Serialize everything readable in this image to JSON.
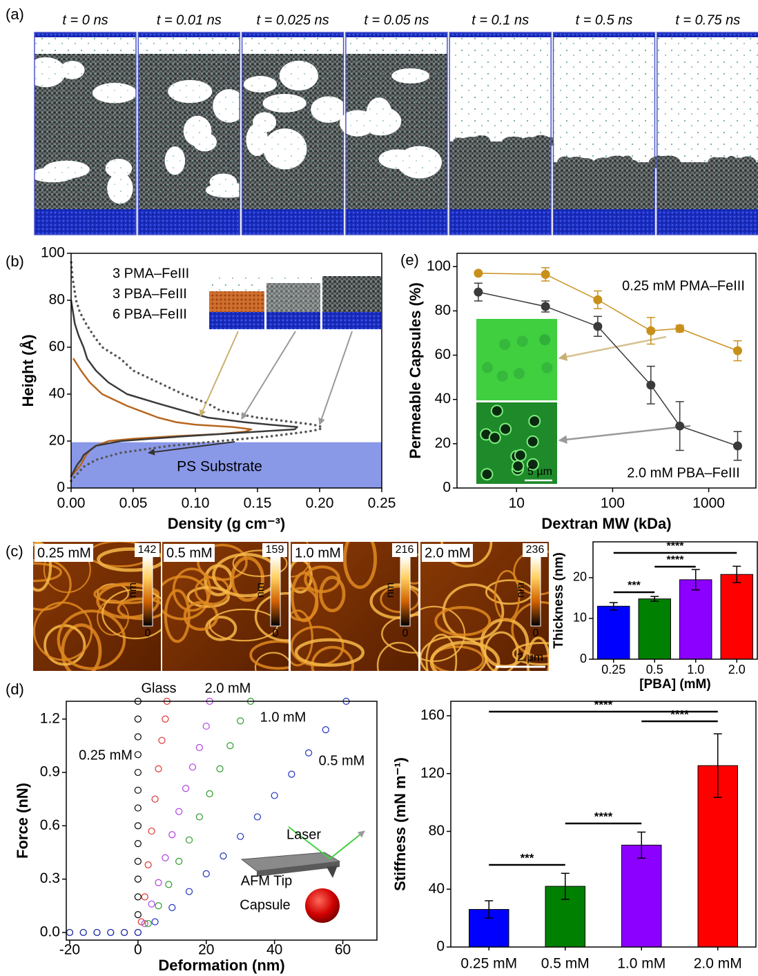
{
  "panel_labels": [
    "(a)",
    "(b)",
    "(c)",
    "(d)",
    "(e)"
  ],
  "panel_a": {
    "times": [
      "t = 0 ns",
      "t = 0.01 ns",
      "t = 0.025 ns",
      "t = 0.05 ns",
      "t = 0.1 ns",
      "t = 0.5 ns",
      "t = 0.75 ns"
    ]
  },
  "panel_c_images": {
    "unit": "nm",
    "scale_bar": "2 µm",
    "images": [
      {
        "label": "0.25 mM",
        "color": "#1a1acc",
        "max": 142,
        "min": 0
      },
      {
        "label": "0.5 mM",
        "color": "#1a8a1a",
        "max": 159,
        "min": 0
      },
      {
        "label": "1.0 mM",
        "color": "#9a1ab0",
        "max": 216,
        "min": 0
      },
      {
        "label": "2.0 mM",
        "color": "#dd1a1a",
        "max": 236,
        "min": 0
      }
    ]
  },
  "chart_data": [
    {
      "type": "line",
      "xlabel": "Density (g cm⁻³)",
      "ylabel": "Height (Å)",
      "xlim": [
        0,
        0.25
      ],
      "ylim": [
        0,
        100
      ],
      "xticks": [
        {
          "value": 0,
          "label": "0.00"
        },
        0.05,
        {
          "value": 0.1,
          "label": "0.10"
        },
        0.15,
        {
          "value": 0.2,
          "label": "0.20"
        },
        0.25
      ],
      "yticks": [
        0,
        20,
        40,
        60,
        80,
        100
      ],
      "region": {
        "label": "PS Substrate",
        "y": [
          0,
          19.5
        ],
        "color": "#7d8de6"
      },
      "series": [
        {
          "name": "3 PMA–FeIII",
          "color": "#b8661e",
          "style": "solid",
          "x": [
            0,
            0.005,
            0.008,
            0.01,
            0.012,
            0.015,
            0.02,
            0.03,
            0.05,
            0.08,
            0.12,
            0.14,
            0.145,
            0.13,
            0.1,
            0.085,
            0.07,
            0.06,
            0.045,
            0.025,
            0.015,
            0.008,
            0.002
          ],
          "y": [
            5,
            8,
            10,
            12,
            14,
            16,
            18,
            20,
            21,
            22,
            23,
            24,
            25,
            26,
            27,
            28,
            30,
            32,
            35,
            40,
            45,
            50,
            55
          ]
        },
        {
          "name": "3 PBA–FeIII",
          "color": "#3a3a3a",
          "style": "solid",
          "x": [
            0,
            0.003,
            0.005,
            0.008,
            0.01,
            0.015,
            0.02,
            0.04,
            0.09,
            0.15,
            0.18,
            0.182,
            0.16,
            0.14,
            0.11,
            0.09,
            0.07,
            0.045,
            0.03,
            0.02,
            0.013,
            0.01,
            0.006,
            0.003,
            0
          ],
          "y": [
            5,
            8,
            10,
            12,
            14,
            16,
            18,
            20,
            22,
            24,
            25,
            26,
            27,
            28,
            30,
            33,
            36,
            40,
            45,
            50,
            55,
            60,
            65,
            70,
            80
          ]
        },
        {
          "name": "6 PBA–FeIII",
          "color": "#555555",
          "style": "dotted",
          "x": [
            0,
            0.005,
            0.01,
            0.02,
            0.04,
            0.08,
            0.12,
            0.16,
            0.19,
            0.2,
            0.202,
            0.195,
            0.18,
            0.15,
            0.12,
            0.11,
            0.09,
            0.07,
            0.05,
            0.04,
            0.025,
            0.018,
            0.012,
            0.007,
            0.004,
            0.001,
            0
          ],
          "y": [
            3,
            6,
            9,
            12,
            15,
            18,
            20,
            22,
            24,
            25,
            26,
            27,
            28,
            30,
            33,
            36,
            40,
            45,
            50,
            55,
            60,
            65,
            70,
            75,
            80,
            90,
            97
          ]
        }
      ]
    },
    {
      "type": "scatter",
      "x_scale": "log",
      "xlabel": "Dextran MW (kDa)",
      "ylabel": "Permeable Capsules (%)",
      "xlim": [
        2.4,
        3100
      ],
      "ylim": [
        0,
        106
      ],
      "xticks": [
        10,
        100,
        1000
      ],
      "yticks": [
        0,
        20,
        40,
        60,
        80,
        100
      ],
      "x": [
        4,
        20,
        70,
        250,
        500,
        2000
      ],
      "series": [
        {
          "name": "0.25 mM PMA–FeIII",
          "color": "#c8901a",
          "values": [
            97,
            96.5,
            85,
            71,
            72,
            62
          ],
          "errors": [
            0.5,
            3,
            4,
            6,
            1.5,
            4.5
          ]
        },
        {
          "name": "2.0 mM PBA–FeIII",
          "color": "#3a3a3a",
          "values": [
            88.5,
            82,
            73,
            46.5,
            28,
            19
          ],
          "errors": [
            4,
            2.5,
            4.5,
            8.5,
            11,
            6.5
          ]
        }
      ],
      "inset_scale": "5 µm"
    },
    {
      "type": "bar",
      "xlabel": "[PBA] (mM)",
      "ylabel": "Thickness (nm)",
      "categories": [
        "0.25",
        "0.5",
        "1.0",
        "2.0"
      ],
      "values": [
        13,
        14.8,
        19.5,
        20.8
      ],
      "errors": [
        0.9,
        0.6,
        2.5,
        2.0
      ],
      "colors": [
        "#0000ff",
        "#008000",
        "#8b00ff",
        "#ff0000"
      ],
      "ylim": [
        0,
        28.8
      ],
      "yticks": [
        0,
        10,
        20
      ],
      "significance": [
        {
          "label": "***",
          "from": "0.25",
          "to": "0.5"
        },
        {
          "label": "****",
          "from": "0.5",
          "to": "1.0"
        },
        {
          "label": "****",
          "from": "0.25",
          "to": "2.0"
        }
      ]
    },
    {
      "type": "scatter",
      "marker": "open-circle",
      "xlabel": "Deformation (nm)",
      "ylabel": "Force (nN)",
      "xlim": [
        -21,
        70
      ],
      "ylim": [
        -0.043,
        1.3
      ],
      "xticks": [
        -20,
        0,
        20,
        40,
        60
      ],
      "yticks": [
        {
          "value": 0,
          "label": "0.0"
        },
        0.3,
        0.6,
        0.9,
        1.2
      ],
      "series": [
        {
          "name": "Glass",
          "color": "#000000",
          "x": [
            0,
            0,
            0,
            0,
            0,
            0,
            0,
            0,
            0,
            0,
            0,
            0,
            0,
            0
          ],
          "y": [
            0,
            0.1,
            0.2,
            0.3,
            0.4,
            0.5,
            0.6,
            0.7,
            0.8,
            0.9,
            1.0,
            1.1,
            1.2,
            1.3
          ]
        },
        {
          "name": "2.0 mM",
          "color": "#e03030",
          "x": [
            -20,
            -16,
            -12,
            -8,
            -4,
            0,
            1,
            2,
            3,
            4,
            5,
            6,
            7,
            8,
            8.5
          ],
          "y": [
            0,
            0,
            0,
            0,
            0,
            0,
            0.06,
            0.2,
            0.38,
            0.57,
            0.75,
            0.92,
            1.08,
            1.2,
            1.3
          ]
        },
        {
          "name": "1.0 mM",
          "color": "#b040e0",
          "x": [
            -20,
            -16,
            -12,
            -8,
            -4,
            0,
            2,
            4,
            6,
            8,
            10,
            12,
            14,
            16,
            18,
            20,
            21
          ],
          "y": [
            0,
            0,
            0,
            0,
            0,
            0,
            0.05,
            0.16,
            0.28,
            0.42,
            0.55,
            0.68,
            0.81,
            0.93,
            1.04,
            1.16,
            1.3
          ]
        },
        {
          "name": "0.5 mM",
          "color": "#2a9a2a",
          "x": [
            -20,
            -16,
            -12,
            -8,
            -4,
            0,
            3,
            6,
            9,
            12,
            15,
            18,
            21,
            24,
            27,
            30,
            33
          ],
          "y": [
            0,
            0,
            0,
            0,
            0,
            0,
            0.05,
            0.15,
            0.27,
            0.4,
            0.52,
            0.65,
            0.78,
            0.92,
            1.05,
            1.19,
            1.3
          ]
        },
        {
          "name": "0.25 mM",
          "color": "#2030c0",
          "x": [
            -20,
            -16,
            -12,
            -8,
            -4,
            0,
            5,
            10,
            15,
            20,
            25,
            30,
            35,
            40,
            45,
            50,
            55,
            61
          ],
          "y": [
            0,
            0,
            0,
            0,
            0,
            0,
            0.06,
            0.14,
            0.23,
            0.33,
            0.43,
            0.54,
            0.65,
            0.77,
            0.89,
            1.01,
            1.14,
            1.3
          ]
        }
      ],
      "annotations": [
        "Laser",
        "AFM Tip",
        "Capsule"
      ]
    },
    {
      "type": "bar",
      "ylabel": "Stiffness (mN m⁻¹)",
      "categories": [
        "0.25 mM",
        "0.5 mM",
        "1.0 mM",
        "2.0 mM"
      ],
      "values": [
        26,
        42,
        70.5,
        125.5
      ],
      "errors": [
        6,
        9,
        9,
        22
      ],
      "colors": [
        "#0000ff",
        "#008000",
        "#8b00ff",
        "#ff0000"
      ],
      "ylim": [
        0,
        170
      ],
      "yticks": [
        0,
        40,
        80,
        120,
        160
      ],
      "significance": [
        {
          "label": "***",
          "from": "0.25 mM",
          "to": "0.5 mM"
        },
        {
          "label": "****",
          "from": "0.5 mM",
          "to": "1.0 mM"
        },
        {
          "label": "****",
          "from": "1.0 mM",
          "to": "2.0 mM"
        },
        {
          "label": "****",
          "from": "0.25 mM",
          "to": "2.0 mM"
        }
      ]
    }
  ]
}
